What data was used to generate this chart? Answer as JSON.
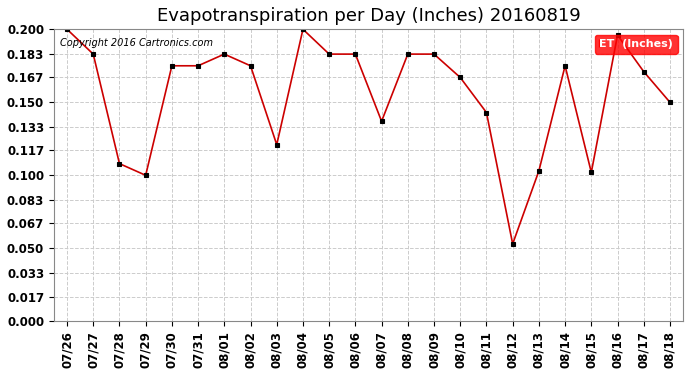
{
  "title": "Evapotranspiration per Day (Inches) 20160819",
  "copyright_text": "Copyright 2016 Cartronics.com",
  "legend_label": "ET  (Inches)",
  "legend_bg": "#ff0000",
  "legend_fg": "#ffffff",
  "x_labels": [
    "07/26",
    "07/27",
    "07/28",
    "07/29",
    "07/30",
    "07/31",
    "08/01",
    "08/02",
    "08/03",
    "08/04",
    "08/05",
    "08/06",
    "08/07",
    "08/08",
    "08/09",
    "08/10",
    "08/11",
    "08/12",
    "08/13",
    "08/14",
    "08/15",
    "08/16",
    "08/17",
    "08/18"
  ],
  "y_values": [
    0.2,
    0.183,
    0.108,
    0.1,
    0.175,
    0.175,
    0.183,
    0.175,
    0.121,
    0.2,
    0.183,
    0.183,
    0.137,
    0.183,
    0.183,
    0.167,
    0.143,
    0.053,
    0.103,
    0.175,
    0.102,
    0.196,
    0.171,
    0.15
  ],
  "line_color": "#cc0000",
  "marker_color": "#000000",
  "bg_color": "#ffffff",
  "grid_color": "#cccccc",
  "ylim": [
    0.0,
    0.2
  ],
  "yticks": [
    0.0,
    0.017,
    0.033,
    0.05,
    0.067,
    0.083,
    0.1,
    0.117,
    0.133,
    0.15,
    0.167,
    0.183,
    0.2
  ],
  "title_fontsize": 13,
  "tick_fontsize": 8.5,
  "ylabel_fontweight": "bold"
}
